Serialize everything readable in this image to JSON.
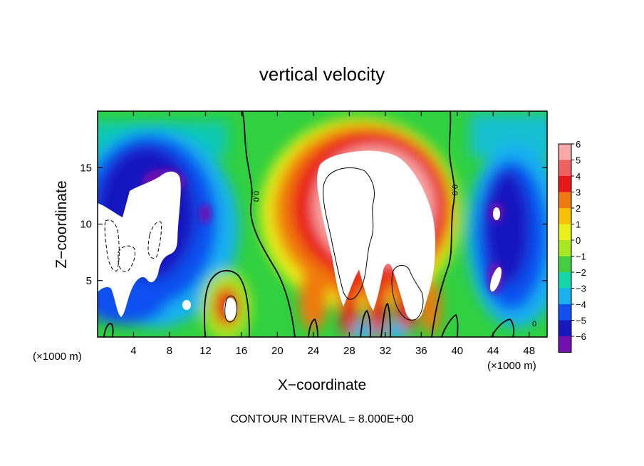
{
  "chart_data": {
    "type": "heatmap",
    "title": "vertical velocity",
    "xlabel": "X−coordinate",
    "ylabel": "Z−coordinate",
    "x_unit_label": "(×1000 m)",
    "x_unit_label_right": "(×1000 m)",
    "footer": "CONTOUR INTERVAL = 8.000E+00",
    "xlim": [
      0,
      50
    ],
    "ylim": [
      0,
      20
    ],
    "x_ticks": [
      4,
      8,
      12,
      16,
      20,
      24,
      28,
      32,
      36,
      40,
      44,
      48
    ],
    "x_tick_labels": [
      "4",
      "8",
      "12",
      "16",
      "20",
      "24",
      "28",
      "32",
      "36",
      "40",
      "44",
      "48"
    ],
    "y_ticks": [
      5,
      10,
      15
    ],
    "y_tick_labels": [
      "5",
      "10",
      "15"
    ],
    "colorbar": {
      "levels": [
        6,
        5,
        4,
        3,
        2,
        1,
        0,
        -1,
        -2,
        -3,
        -4,
        -5,
        -6
      ],
      "labels": [
        "6",
        "5",
        "4",
        "3",
        "2",
        "1",
        "0",
        "−1",
        "−2",
        "−3",
        "−4",
        "−5",
        "−6"
      ],
      "colors": [
        "#f8a8a8",
        "#f06060",
        "#e81818",
        "#f07810",
        "#f8c000",
        "#e8f018",
        "#a8e820",
        "#40d040",
        "#10d8a8",
        "#18b0f0",
        "#1050f0",
        "#1818c0",
        "#7010b0"
      ],
      "above_range_color": "#ffffff",
      "below_range_color": "#ffffff"
    },
    "contour_labels": [
      "0.0",
      "0.0",
      "0"
    ],
    "grid": false
  }
}
